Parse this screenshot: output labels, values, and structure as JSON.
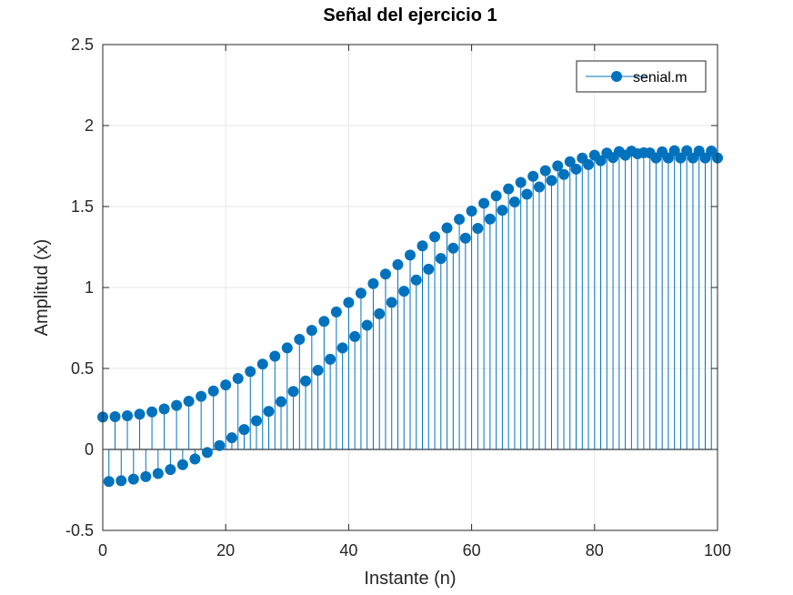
{
  "chart_data": {
    "type": "stem",
    "title": "Señal del ejercicio 1",
    "xlabel": "Instante (n)",
    "ylabel": "Amplitud (x)",
    "xlim": [
      0,
      100
    ],
    "ylim": [
      -0.5,
      2.5
    ],
    "xticks": [
      0,
      20,
      40,
      60,
      80,
      100
    ],
    "xtick_labels": [
      "0",
      "20",
      "40",
      "60",
      "80",
      "100"
    ],
    "yticks": [
      -0.5,
      0,
      0.5,
      1,
      1.5,
      2,
      2.5
    ],
    "ytick_labels": [
      "-0.5",
      "0",
      "0.5",
      "1",
      "1.5",
      "2",
      "2.5"
    ],
    "grid": true,
    "legend_position": "top-right",
    "color": "#0072BD",
    "series": [
      {
        "name": "senial.m",
        "x": [
          0,
          1,
          2,
          3,
          4,
          5,
          6,
          7,
          8,
          9,
          10,
          11,
          12,
          13,
          14,
          15,
          16,
          17,
          18,
          19,
          20,
          21,
          22,
          23,
          24,
          25,
          26,
          27,
          28,
          29,
          30,
          31,
          32,
          33,
          34,
          35,
          36,
          37,
          38,
          39,
          40,
          41,
          42,
          43,
          44,
          45,
          46,
          47,
          48,
          49,
          50,
          51,
          52,
          53,
          54,
          55,
          56,
          57,
          58,
          59,
          60,
          61,
          62,
          63,
          64,
          65,
          66,
          67,
          68,
          69,
          70,
          71,
          72,
          73,
          74,
          75,
          76,
          77,
          78,
          79,
          80,
          81,
          82,
          83,
          84,
          85,
          86,
          87,
          88,
          89,
          90,
          91,
          92,
          93,
          94,
          95,
          96,
          97,
          98,
          99,
          100
        ],
        "y": [
          0.2,
          -0.198,
          0.202,
          -0.193,
          0.208,
          -0.183,
          0.218,
          -0.168,
          0.232,
          -0.149,
          0.25,
          -0.124,
          0.272,
          -0.094,
          0.298,
          -0.059,
          0.328,
          -0.019,
          0.361,
          0.024,
          0.398,
          0.072,
          0.438,
          0.123,
          0.481,
          0.177,
          0.527,
          0.235,
          0.576,
          0.295,
          0.627,
          0.358,
          0.68,
          0.423,
          0.735,
          0.489,
          0.791,
          0.557,
          0.849,
          0.627,
          0.907,
          0.697,
          0.965,
          0.767,
          1.024,
          0.838,
          1.083,
          0.908,
          1.141,
          0.977,
          1.2,
          1.046,
          1.257,
          1.113,
          1.313,
          1.179,
          1.368,
          1.243,
          1.421,
          1.305,
          1.472,
          1.365,
          1.52,
          1.423,
          1.566,
          1.477,
          1.609,
          1.528,
          1.649,
          1.576,
          1.687,
          1.621,
          1.721,
          1.661,
          1.751,
          1.698,
          1.777,
          1.731,
          1.799,
          1.759,
          1.817,
          1.783,
          1.83,
          1.802,
          1.839,
          1.817,
          1.842,
          1.826,
          1.832,
          1.831,
          1.8,
          1.838,
          1.8,
          1.845,
          1.8,
          1.845,
          1.8,
          1.843,
          1.8,
          1.843,
          1.8
        ]
      }
    ]
  }
}
